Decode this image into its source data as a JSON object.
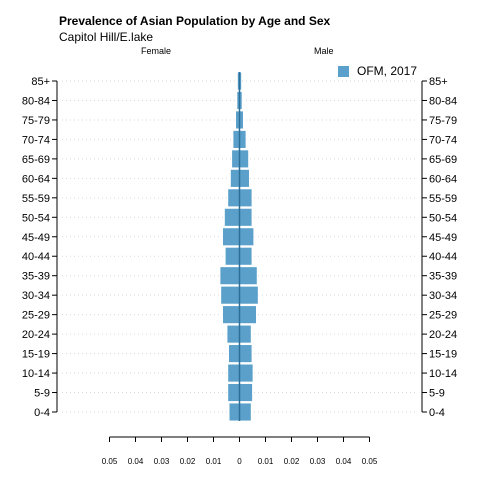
{
  "title": "Prevalence of Asian Population by Age and Sex",
  "subtitle": "Capitol Hill/E.lake",
  "female_label": "Female",
  "male_label": "Male",
  "legend_label": "OFM, 2017",
  "colors": {
    "bar": "#5aa0ca",
    "bar_edge": "#ffffff",
    "center": "#2d6f97",
    "grid": "#d9d9d9"
  },
  "chart_data": {
    "type": "bar",
    "orientation": "horizontal-pyramid",
    "title": "Prevalence of Asian Population by Age and Sex",
    "subtitle": "Capitol Hill/E.lake",
    "categories": [
      "0-4",
      "5-9",
      "10-14",
      "15-19",
      "20-24",
      "25-29",
      "30-34",
      "35-39",
      "40-44",
      "45-49",
      "50-54",
      "55-59",
      "60-64",
      "65-69",
      "70-74",
      "75-79",
      "80-84",
      "85+"
    ],
    "series": [
      {
        "name": "Female",
        "values": [
          0.004,
          0.0045,
          0.0045,
          0.0042,
          0.0048,
          0.0065,
          0.0072,
          0.0075,
          0.0055,
          0.0065,
          0.0058,
          0.0045,
          0.0035,
          0.003,
          0.0025,
          0.0015,
          0.001,
          0.0008
        ]
      },
      {
        "name": "Male",
        "values": [
          0.0045,
          0.005,
          0.0052,
          0.0048,
          0.0045,
          0.0065,
          0.0072,
          0.0068,
          0.0048,
          0.0055,
          0.0048,
          0.0048,
          0.0038,
          0.0035,
          0.0025,
          0.0015,
          0.001,
          0.0008
        ]
      }
    ],
    "legend": [
      "OFM, 2017"
    ],
    "legend_position": "top-right",
    "xlim": [
      -0.05,
      0.05
    ],
    "xticks": [
      -0.05,
      -0.04,
      -0.03,
      -0.02,
      -0.01,
      0,
      0.01,
      0.02,
      0.03,
      0.04,
      0.05
    ],
    "xtick_labels": [
      "0.05",
      "0.04",
      "0.03",
      "0.02",
      "0.01",
      "0",
      "0.01",
      "0.02",
      "0.03",
      "0.04",
      "0.05"
    ],
    "grid": true
  }
}
